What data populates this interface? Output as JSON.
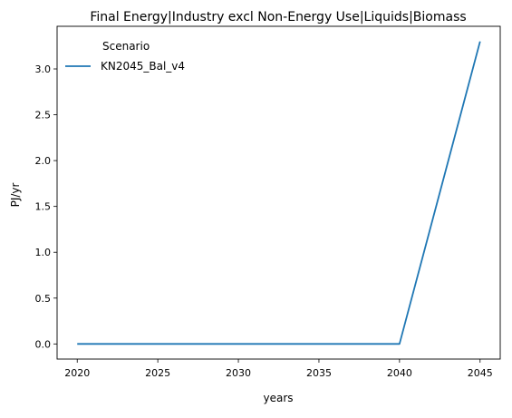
{
  "chart_data": {
    "type": "line",
    "title": "Final Energy|Industry excl Non-Energy Use|Liquids|Biomass",
    "xlabel": "years",
    "ylabel": "PJ/yr",
    "x": [
      2020,
      2025,
      2030,
      2035,
      2040,
      2045
    ],
    "xticks": [
      "2020",
      "2025",
      "2030",
      "2035",
      "2040",
      "2045"
    ],
    "yticks": [
      "0.0",
      "0.5",
      "1.0",
      "1.5",
      "2.0",
      "2.5",
      "3.0"
    ],
    "xlim": [
      2018.75,
      2046.25
    ],
    "ylim": [
      -0.165,
      3.465
    ],
    "grid": false,
    "legend": {
      "title": "Scenario",
      "placement": "top-left"
    },
    "series": [
      {
        "name": "KN2045_Bal_v4",
        "color": "#1f77b4",
        "values": [
          0.0,
          0.0,
          0.0,
          0.0,
          0.0,
          3.3
        ]
      }
    ]
  }
}
